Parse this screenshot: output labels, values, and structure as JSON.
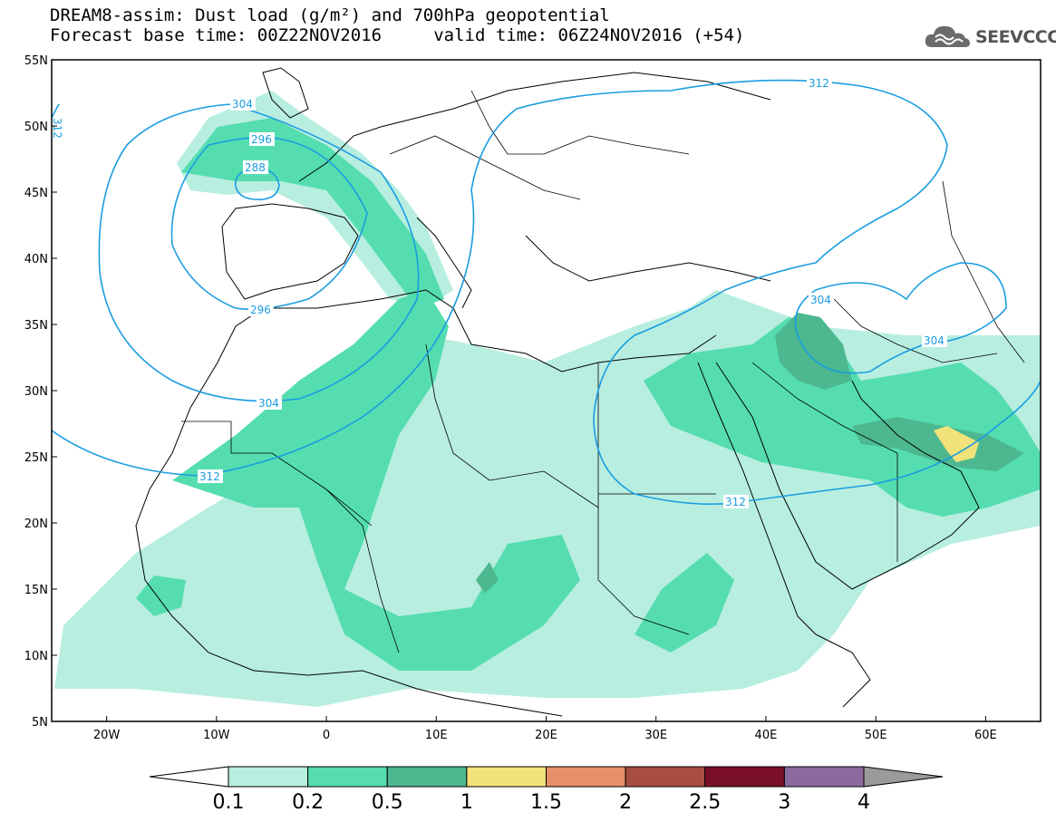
{
  "header": {
    "line1": "DREAM8-assim: Dust load (g/m²) and 700hPa geopotential",
    "line2": "Forecast base time: 00Z22NOV2016     valid time: 06Z24NOV2016 (+54)"
  },
  "logo": {
    "text": "SEEVCCC",
    "icon": "cloud-logo-icon"
  },
  "map": {
    "lon_range": [
      -25,
      65
    ],
    "lat_range": [
      5,
      55
    ],
    "x_ticks": [
      "20W",
      "10W",
      "0",
      "10E",
      "20E",
      "30E",
      "40E",
      "50E",
      "60E"
    ],
    "y_ticks": [
      "55N",
      "50N",
      "45N",
      "40N",
      "35N",
      "30N",
      "25N",
      "20N",
      "15N",
      "10N",
      "5N"
    ],
    "contour_labels": [
      "304",
      "296",
      "288",
      "296",
      "304",
      "312",
      "312",
      "312",
      "304",
      "304",
      "312"
    ],
    "contour_color": "#1a9de0"
  },
  "colorbar": {
    "labels": [
      "0.1",
      "0.2",
      "0.5",
      "1",
      "1.5",
      "2",
      "2.5",
      "3",
      "4"
    ],
    "colors": [
      "#ffffff",
      "#b7eee0",
      "#55ddb0",
      "#4db890",
      "#f2e27a",
      "#e59068",
      "#a84d42",
      "#7a0f28",
      "#8c6a9e",
      "#9a9a9a"
    ]
  }
}
